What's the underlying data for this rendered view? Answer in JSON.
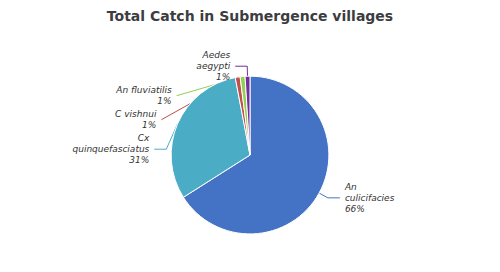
{
  "chart_data": {
    "type": "pie",
    "title": "Total Catch in Submergence villages",
    "categories": [
      "An\nculicifacies",
      "Cx\nquinquefasciatus",
      "C vishnui",
      "An fluviatilis",
      "Aedes\naegypti"
    ],
    "values": [
      66,
      31,
      1,
      1,
      1
    ],
    "value_labels": [
      "66%",
      "31%",
      "1%",
      "1%",
      "1%"
    ],
    "colors": [
      "#4472C4",
      "#4BACC6",
      "#C0504D",
      "#92D050",
      "#7030A0"
    ],
    "data_labels": true
  }
}
